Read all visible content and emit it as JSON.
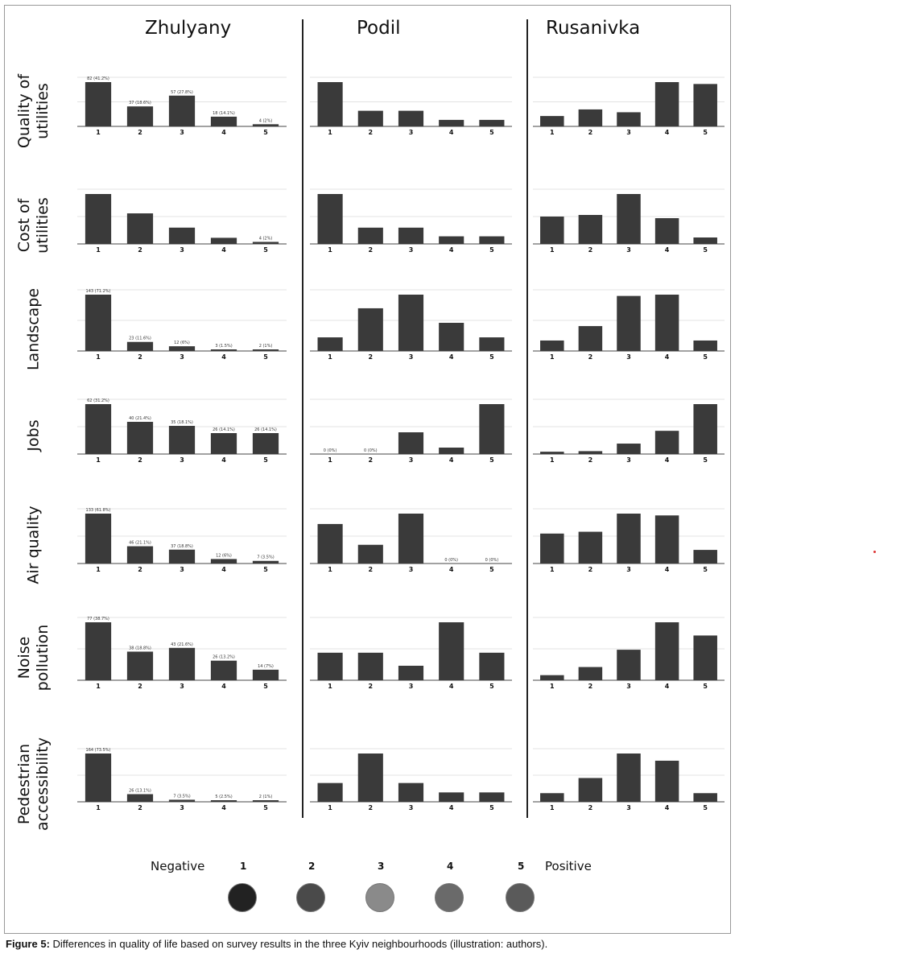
{
  "chart_data": {
    "type": "bar",
    "columns": [
      "Zhulyany",
      "Podil",
      "Rusanivka"
    ],
    "rows": [
      "Quality of\nutilities",
      "Cost of\nutilities",
      "Landscape",
      "Jobs",
      "Air quality",
      "Noise\npollution",
      "Pedestrian\naccessibility"
    ],
    "categories": [
      "1",
      "2",
      "3",
      "4",
      "5"
    ],
    "panels": [
      [
        {
          "values": [
            82,
            37,
            57,
            18,
            4
          ],
          "labels": [
            "82 (41.2%)",
            "37 (18.6%)",
            "57 (27.8%)",
            "18 (14.1%)",
            "4 (2%)"
          ]
        },
        {
          "values": [
            34,
            12,
            12,
            5,
            5
          ],
          "labels": [
            "",
            "",
            "",
            "",
            ""
          ]
        },
        {
          "values": [
            11,
            18,
            15,
            47,
            45
          ],
          "labels": [
            "",
            "",
            "",
            "",
            ""
          ]
        }
      ],
      [
        {
          "values": [
            98,
            60,
            32,
            12,
            4
          ],
          "labels": [
            "",
            "",
            "",
            "",
            "4 (2%)"
          ]
        },
        {
          "values": [
            46,
            15,
            15,
            7,
            7
          ],
          "labels": [
            "",
            "",
            "",
            "",
            ""
          ]
        },
        {
          "values": [
            34,
            36,
            62,
            32,
            8
          ],
          "labels": [
            "",
            "",
            "",
            "",
            ""
          ]
        }
      ],
      [
        {
          "values": [
            143,
            23,
            12,
            3,
            2
          ],
          "labels": [
            "143 (71.2%)",
            "23 (11.6%)",
            "12 (6%)",
            "3 (1.5%)",
            "2 (1%)"
          ]
        },
        {
          "values": [
            15,
            47,
            62,
            31,
            15
          ],
          "labels": [
            "",
            "",
            "",
            "",
            ""
          ]
        },
        {
          "values": [
            16,
            38,
            84,
            86,
            16
          ],
          "labels": [
            "",
            "",
            "",
            "",
            ""
          ]
        }
      ],
      [
        {
          "values": [
            62,
            40,
            35,
            26,
            26
          ],
          "labels": [
            "62 (31.2%)",
            "40 (21.4%)",
            "35 (18.1%)",
            "26 (14.1%)",
            "26 (14.1%)"
          ]
        },
        {
          "values": [
            0,
            0,
            27,
            8,
            62
          ],
          "labels": [
            "0 (0%)",
            "0 (0%)",
            "",
            "",
            ""
          ]
        },
        {
          "values": [
            4,
            5,
            18,
            40,
            86
          ],
          "labels": [
            "",
            "",
            "",
            "",
            ""
          ]
        }
      ],
      [
        {
          "values": [
            133,
            46,
            37,
            12,
            7
          ],
          "labels": [
            "133 (61.8%)",
            "46 (21.1%)",
            "37 (18.8%)",
            "12 (6%)",
            "7 (3.5%)"
          ]
        },
        {
          "values": [
            38,
            18,
            48,
            0,
            0
          ],
          "labels": [
            "",
            "",
            "",
            "0 (0%)",
            "0 (0%)"
          ]
        },
        {
          "values": [
            33,
            35,
            55,
            53,
            15
          ],
          "labels": [
            "",
            "",
            "",
            "",
            ""
          ]
        }
      ],
      [
        {
          "values": [
            77,
            38,
            43,
            26,
            14
          ],
          "labels": [
            "77 (38.7%)",
            "38 (18.8%)",
            "43 (21.6%)",
            "26 (13.2%)",
            "14 (7%)"
          ]
        },
        {
          "values": [
            19,
            19,
            10,
            40,
            19
          ],
          "labels": [
            "",
            "",
            "",
            "",
            ""
          ]
        },
        {
          "values": [
            5,
            13,
            30,
            57,
            44
          ],
          "labels": [
            "",
            "",
            "",
            "",
            ""
          ]
        }
      ],
      [
        {
          "values": [
            164,
            26,
            7,
            5,
            2
          ],
          "labels": [
            "164 (73.5%)",
            "26 (13.1%)",
            "7 (3.5%)",
            "5 (2.5%)",
            "2 (1%)"
          ]
        },
        {
          "values": [
            14,
            36,
            14,
            7,
            7
          ],
          "labels": [
            "",
            "",
            "",
            "",
            ""
          ]
        },
        {
          "values": [
            12,
            33,
            67,
            57,
            12
          ],
          "labels": [
            "",
            "",
            "",
            "",
            ""
          ]
        }
      ]
    ]
  },
  "legend": {
    "negative_label": "Negative",
    "positive_label": "Positive",
    "scale": [
      "1",
      "2",
      "3",
      "4",
      "5"
    ],
    "colors": [
      "#222222",
      "#4a4a4a",
      "#8a8a8a",
      "#6a6a6a",
      "#5a5a5a"
    ]
  },
  "colors": {
    "bar": "#3a3a3a",
    "axis": "#444444",
    "grid": "#e3e3e3"
  },
  "caption": {
    "prefix": "Figure 5:",
    "text": " Differences in quality of life based on survey results in the three Kyiv neighbourhoods (illustration: authors)."
  }
}
